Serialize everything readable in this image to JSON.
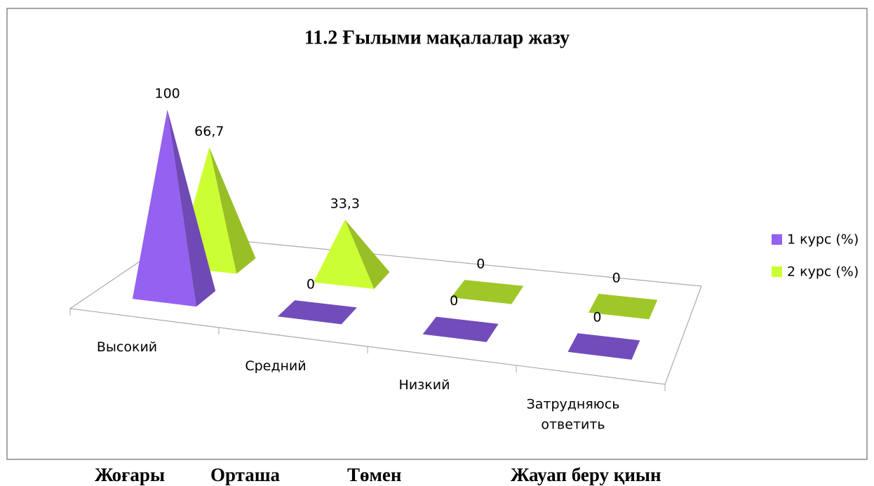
{
  "chart_data": {
    "type": "pyramid",
    "title": "11.2 Ғылыми мақалалар жазу",
    "categories": [
      "Высокий",
      "Средний",
      "Низкий",
      "Затрудняюсь ответить"
    ],
    "series": [
      {
        "name": "1 курс (%)",
        "color": "#9461f0",
        "values": [
          100,
          0,
          0,
          0
        ],
        "value_labels": [
          "100",
          "0",
          "0",
          "0"
        ]
      },
      {
        "name": "2 курс (%)",
        "color": "#ccff33",
        "values": [
          66.7,
          33.3,
          0,
          0
        ],
        "value_labels": [
          "66,7",
          "33,3",
          "0",
          "0"
        ]
      }
    ],
    "legend": "right"
  },
  "footer": [
    "Жоғары",
    "Орташа",
    "Төмен",
    "Жауап беру қиын"
  ]
}
